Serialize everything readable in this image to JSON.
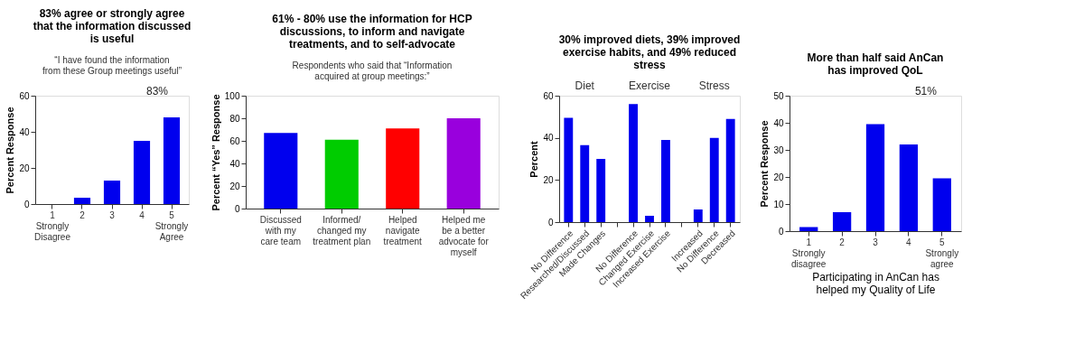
{
  "chart_data": [
    {
      "type": "bar",
      "title": "83% agree or strongly agree\nthat the information discussed\nis useful",
      "subtitle": "“I have found the information\nfrom these Group meetings useful”",
      "ylabel": "Percent Response",
      "categories": [
        "1\n\nStrongly\nDisagree",
        "2",
        "3",
        "4",
        "5\n\n\nStrongly\nAgree"
      ],
      "values": [
        0,
        3.5,
        13,
        35,
        48
      ],
      "color": "#0000ee",
      "ylim": [
        0,
        60
      ],
      "yticks": [
        0,
        20,
        40,
        60
      ],
      "annotations": [
        "83%"
      ],
      "grid": false
    },
    {
      "type": "bar",
      "title": "61% - 80% use the information for HCP\ndiscussions, to inform and navigate\ntreatments, and to self-advocate",
      "subtitle": "Respondents who said that “Information\nacquired at group meetings:”",
      "ylabel": "Percent “Yes” Response",
      "categories": [
        "Discussed\nwith my\ncare team",
        "Informed/\nchanged my\ntreatment plan",
        "Helped\nnavigate\ntreatment",
        "Helped me\nbe a better\nadvocate for\nmyself"
      ],
      "values": [
        67,
        61,
        71,
        80
      ],
      "colors": [
        "#0000ee",
        "#00cc00",
        "#ff0000",
        "#9900dd"
      ],
      "ylim": [
        0,
        100
      ],
      "yticks": [
        0,
        20,
        40,
        60,
        80,
        100
      ],
      "grid": false
    },
    {
      "type": "bar",
      "title": "30% improved diets, 39% improved\nexercise habits, and 49% reduced\nstress",
      "ylabel": "Percent",
      "categories": [
        "No Difference",
        "Researched/Discussed",
        "Made Changes",
        null,
        "No Difference",
        "Changed Exercise",
        "Increased Exercise",
        null,
        "Increased",
        "No Difference",
        "Decreased"
      ],
      "values": [
        49.5,
        36.5,
        30,
        null,
        56,
        3,
        39,
        null,
        6,
        40,
        49
      ],
      "color": "#0000ee",
      "ylim": [
        0,
        60
      ],
      "yticks": [
        0,
        20,
        40,
        60
      ],
      "annotations": [
        "Diet",
        "Exercise",
        "Stress"
      ],
      "grid": false
    },
    {
      "type": "bar",
      "title": "More than half said AnCan\nhas improved QoL",
      "xlabel": "Participating in AnCan has\nhelped my Quality of Life",
      "ylabel": "Percent Response",
      "categories": [
        "1\nStrongly\ndisagree",
        "2",
        "3",
        "4",
        "5\nStrongly\nagree"
      ],
      "values": [
        1.5,
        7,
        39.5,
        32,
        19.5
      ],
      "color": "#0000ee",
      "ylim": [
        0,
        50
      ],
      "yticks": [
        0,
        10,
        20,
        30,
        40,
        50
      ],
      "annotations": [
        "51%"
      ],
      "grid": false
    }
  ]
}
